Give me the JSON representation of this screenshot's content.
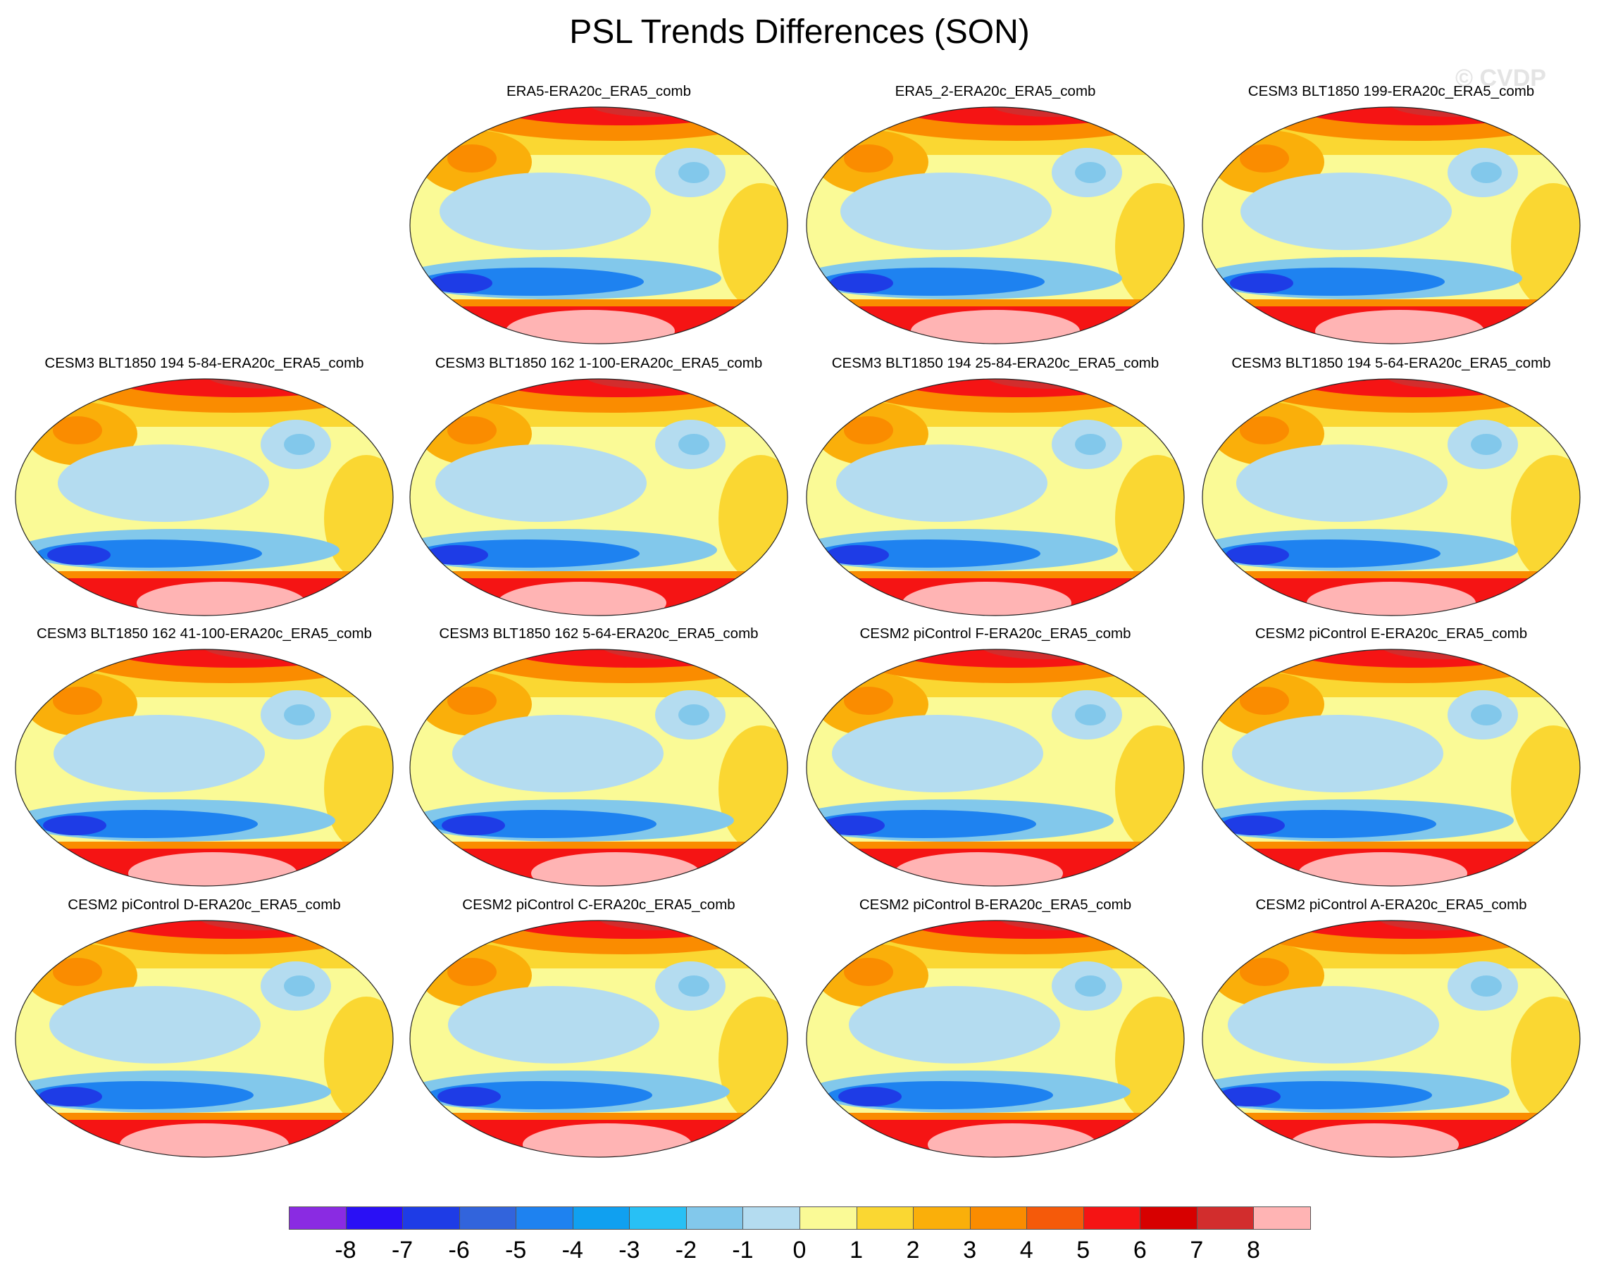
{
  "title": "PSL Trends Differences (SON)",
  "watermark": "© CVDP",
  "panels": [
    {
      "title": "",
      "empty": true
    },
    {
      "title": "ERA5-ERA20c_ERA5_comb"
    },
    {
      "title": "ERA5_2-ERA20c_ERA5_comb"
    },
    {
      "title": "CESM3 BLT1850 199-ERA20c_ERA5_comb"
    },
    {
      "title": "CESM3 BLT1850 194 5-84-ERA20c_ERA5_comb"
    },
    {
      "title": "CESM3 BLT1850 162 1-100-ERA20c_ERA5_comb"
    },
    {
      "title": "CESM3 BLT1850 194 25-84-ERA20c_ERA5_comb"
    },
    {
      "title": "CESM3 BLT1850 194 5-64-ERA20c_ERA5_comb"
    },
    {
      "title": "CESM3 BLT1850 162 41-100-ERA20c_ERA5_comb"
    },
    {
      "title": "CESM3 BLT1850 162 5-64-ERA20c_ERA5_comb"
    },
    {
      "title": "CESM2 piControl F-ERA20c_ERA5_comb"
    },
    {
      "title": "CESM2 piControl E-ERA20c_ERA5_comb"
    },
    {
      "title": "CESM2 piControl D-ERA20c_ERA5_comb"
    },
    {
      "title": "CESM2 piControl C-ERA20c_ERA5_comb"
    },
    {
      "title": "CESM2 piControl B-ERA20c_ERA5_comb"
    },
    {
      "title": "CESM2 piControl A-ERA20c_ERA5_comb"
    }
  ],
  "colorbar": {
    "labels": [
      "-8",
      "-7",
      "-6",
      "-5",
      "-4",
      "-3",
      "-2",
      "-1",
      "0",
      "1",
      "2",
      "3",
      "4",
      "5",
      "6",
      "7",
      "8"
    ],
    "colors": [
      "#8a2be2",
      "#2a10f5",
      "#1e3ce6",
      "#3264dc",
      "#1e82f0",
      "#10a0f0",
      "#28c0f5",
      "#82c8eb",
      "#b4dcf0",
      "#fafa96",
      "#fad732",
      "#faaf0a",
      "#fa8c00",
      "#f55a0a",
      "#f51414",
      "#d70000",
      "#d22d2d",
      "#ffb4b4"
    ]
  }
}
